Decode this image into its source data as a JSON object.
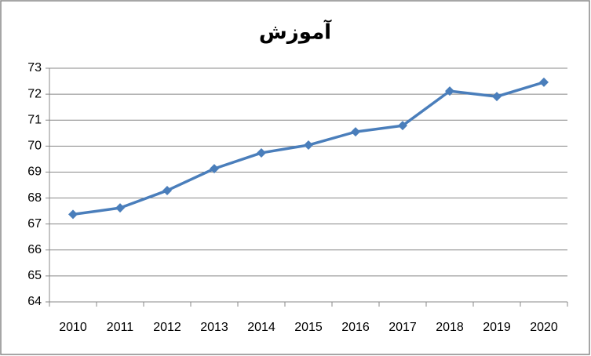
{
  "chart_data": {
    "type": "line",
    "title": "آموزش",
    "categories": [
      "2010",
      "2011",
      "2012",
      "2013",
      "2014",
      "2015",
      "2016",
      "2017",
      "2018",
      "2019",
      "2020"
    ],
    "series": [
      {
        "color": "#4a7ebb",
        "values": [
          67.37,
          67.62,
          68.29,
          69.13,
          69.74,
          70.04,
          70.55,
          70.79,
          72.12,
          71.91,
          72.46
        ]
      }
    ],
    "ylim": [
      64,
      73
    ],
    "yticks": [
      64,
      65,
      66,
      67,
      68,
      69,
      70,
      71,
      72,
      73
    ],
    "grid": true
  }
}
